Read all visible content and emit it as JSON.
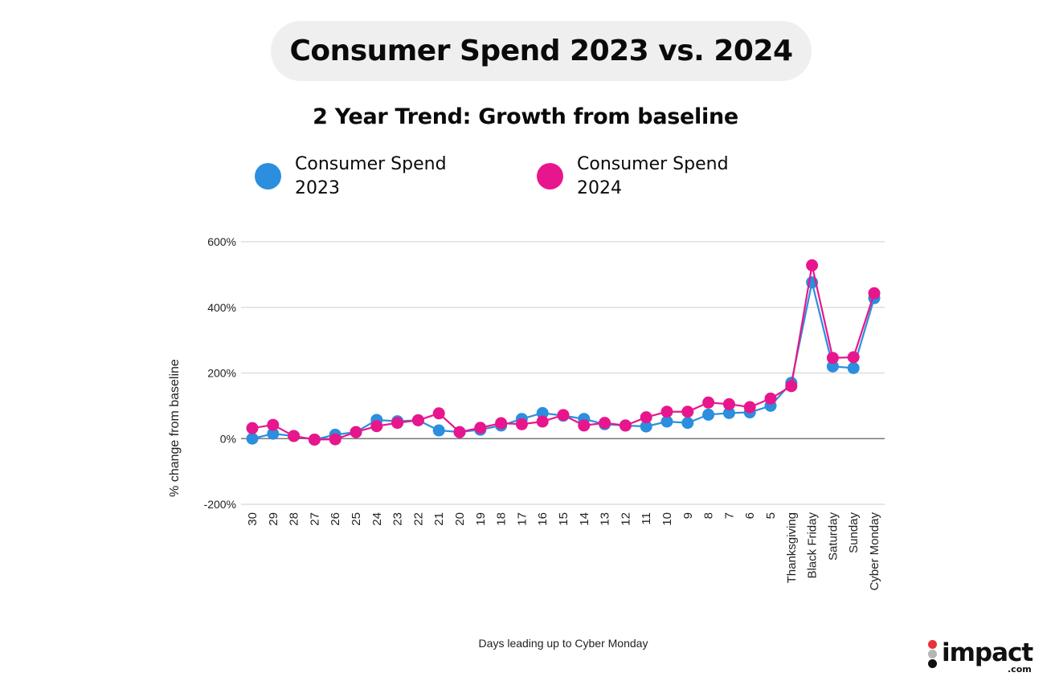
{
  "header": {
    "title": "Consumer Spend 2023 vs. 2024"
  },
  "logo": {
    "text": "impact",
    "suffix": ".com",
    "dot_colors": [
      "#e8313a",
      "#b5b5b5",
      "#111111"
    ]
  },
  "chart_data": {
    "type": "line",
    "title": "2 Year Trend: Growth from baseline",
    "xlabel": "Days leading up to Cyber Monday",
    "ylabel": "% change from baseline",
    "ylim": [
      -200,
      600
    ],
    "yticks": [
      -200,
      0,
      200,
      400,
      600
    ],
    "ytick_labels": [
      "-200%",
      "0%",
      "200%",
      "400%",
      "600%"
    ],
    "grid": true,
    "legend_position": "top",
    "categories": [
      "30",
      "29",
      "28",
      "27",
      "26",
      "25",
      "24",
      "23",
      "22",
      "21",
      "20",
      "19",
      "18",
      "17",
      "16",
      "15",
      "14",
      "13",
      "12",
      "11",
      "10",
      "9",
      "8",
      "7",
      "6",
      "5",
      "Thanksgiving",
      "Black Friday",
      "Saturday",
      "Sunday",
      "Cyber Monday"
    ],
    "series": [
      {
        "name": "Consumer Spend 2023",
        "legend_label": [
          "Consumer Spend",
          "2023"
        ],
        "color": "#2b8ede",
        "values": [
          0,
          15,
          8,
          -3,
          12,
          20,
          57,
          53,
          56,
          25,
          20,
          27,
          40,
          60,
          78,
          70,
          60,
          44,
          40,
          37,
          52,
          48,
          73,
          78,
          80,
          100,
          170,
          476,
          220,
          215,
          428
        ]
      },
      {
        "name": "Consumer Spend 2024",
        "legend_label": [
          "Consumer Spend",
          "2024"
        ],
        "color": "#e8168c",
        "values": [
          32,
          42,
          8,
          -3,
          -2,
          20,
          38,
          48,
          56,
          77,
          20,
          33,
          47,
          44,
          52,
          72,
          40,
          48,
          40,
          65,
          82,
          82,
          110,
          105,
          96,
          122,
          160,
          528,
          246,
          248,
          443
        ]
      }
    ]
  }
}
